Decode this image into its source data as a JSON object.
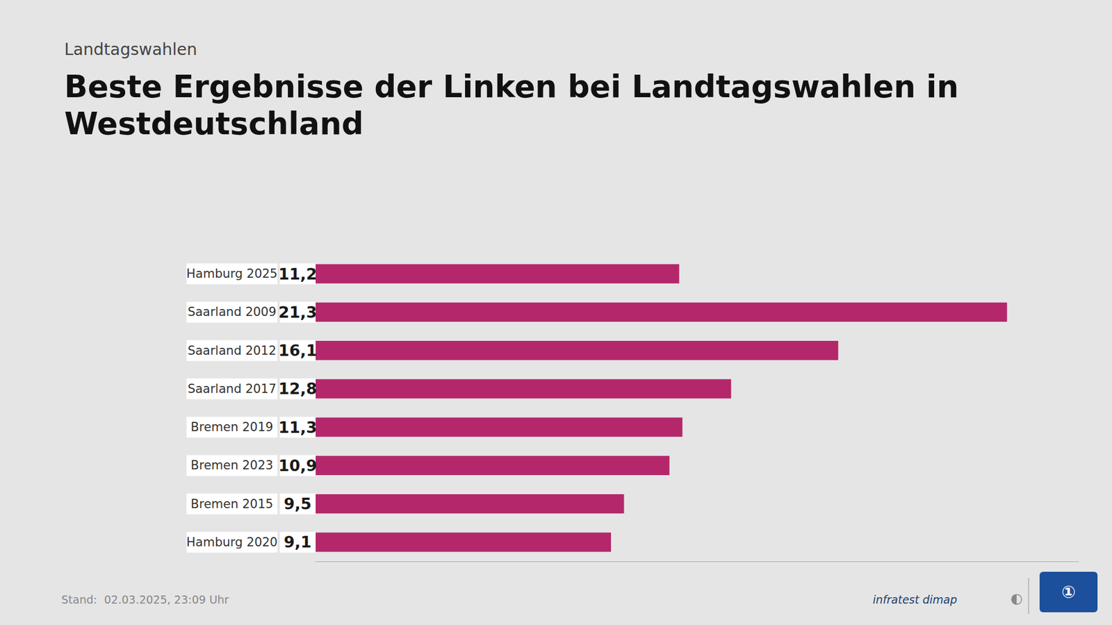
{
  "chart_data": {
    "type": "bar",
    "orientation": "horizontal",
    "subtitle": "Landtagswahlen",
    "title": "Beste Ergebnisse der Linken bei Landtagswahlen in\nWestdeutschland",
    "categories": [
      "Hamburg 2025",
      "Saarland 2009",
      "Saarland 2012",
      "Saarland 2017",
      "Bremen 2019",
      "Bremen 2023",
      "Bremen 2015",
      "Hamburg 2020"
    ],
    "values": [
      11.2,
      21.3,
      16.1,
      12.8,
      11.3,
      10.9,
      9.5,
      9.1
    ],
    "value_labels": [
      "11,2",
      "21,3",
      "16,1",
      "12,8",
      "11,3",
      "10,9",
      "9,5",
      "9,1"
    ],
    "data_labels": true,
    "color": "#b5276b",
    "xlim": [
      0,
      23.5
    ],
    "tick_labels": "y",
    "grid": false,
    "annotations": [
      "Stand:  02.03.2025, 23:09 Uhr",
      "infratest dimap",
      "◐",
      "①"
    ]
  }
}
